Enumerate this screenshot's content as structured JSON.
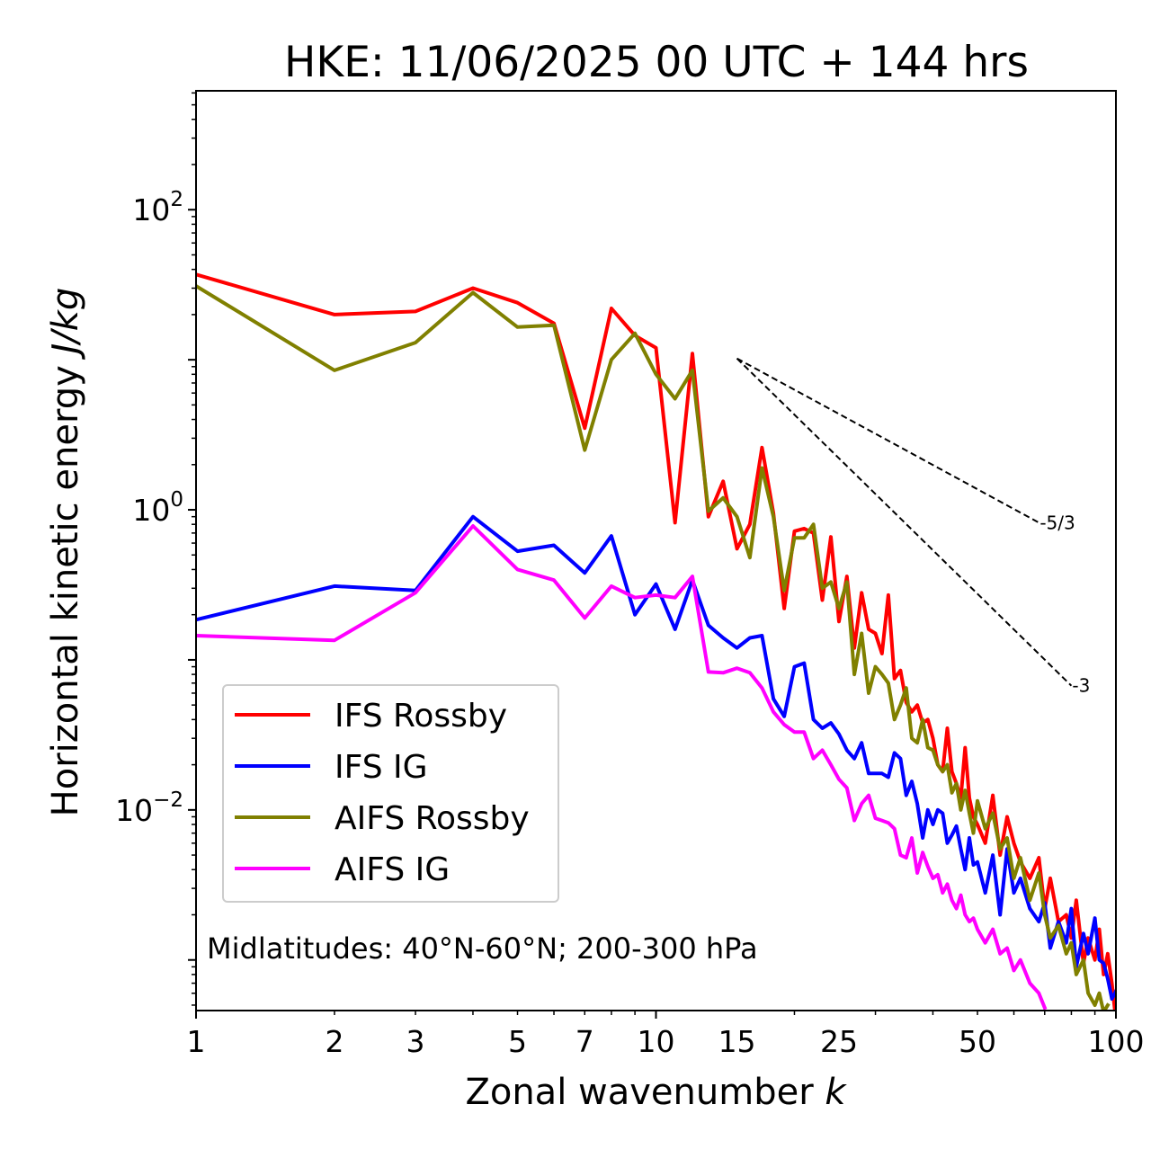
{
  "chart_data": {
    "type": "line",
    "title": "HKE: 11/06/2025 00 UTC + 144 hrs",
    "xlabel": "Zonal wavenumber",
    "xlabel_var": "k",
    "ylabel": "Horizontal kinetic energy",
    "ylabel_unit": "J/kg",
    "xscale": "log",
    "yscale": "log",
    "xlim": [
      1,
      100
    ],
    "ylim": [
      0.00046,
      620
    ],
    "xticks": [
      "1",
      "2",
      "3",
      "5",
      "7",
      "10",
      "15",
      "25",
      "50",
      "100"
    ],
    "yticks": [
      {
        "base": "10",
        "exp": "2",
        "value": 100
      },
      {
        "base": "10",
        "exp": "0",
        "value": 1
      },
      {
        "base": "10",
        "exp": "−2",
        "value": 0.01
      }
    ],
    "annotation": "Midlatitudes: 40°N-60°N; 200-300 hPa",
    "legend_position": "lower-left",
    "reference_slopes": [
      {
        "label": "-5/3",
        "slope": -1.6667,
        "x_start": 15,
        "y_start": 10.2,
        "x_end": 68
      },
      {
        "label": "-3",
        "slope": -3,
        "x_start": 15,
        "y_start": 10.2,
        "x_end": 80
      }
    ],
    "series": [
      {
        "name": "IFS Rossby",
        "color": "#ff0000",
        "points": [
          [
            1,
            37
          ],
          [
            2,
            20
          ],
          [
            3,
            21
          ],
          [
            4,
            30
          ],
          [
            5,
            24
          ],
          [
            6,
            17.5
          ],
          [
            7,
            3.5
          ],
          [
            8,
            22
          ],
          [
            9,
            14.5
          ],
          [
            10,
            12
          ],
          [
            11,
            0.82
          ],
          [
            12,
            11
          ],
          [
            13,
            0.9
          ],
          [
            14,
            1.55
          ],
          [
            15,
            0.55
          ],
          [
            16,
            0.8
          ],
          [
            17,
            2.6
          ],
          [
            18,
            0.95
          ],
          [
            19,
            0.22
          ],
          [
            20,
            0.72
          ],
          [
            21,
            0.75
          ],
          [
            22,
            0.7
          ],
          [
            23,
            0.25
          ],
          [
            24,
            0.66
          ],
          [
            25,
            0.18
          ],
          [
            26,
            0.36
          ],
          [
            27,
            0.12
          ],
          [
            28,
            0.28
          ],
          [
            29,
            0.16
          ],
          [
            30,
            0.15
          ],
          [
            31,
            0.11
          ],
          [
            32,
            0.27
          ],
          [
            33,
            0.075
          ],
          [
            34,
            0.085
          ],
          [
            35,
            0.052
          ],
          [
            36,
            0.045
          ],
          [
            37,
            0.05
          ],
          [
            38,
            0.038
          ],
          [
            39,
            0.04
          ],
          [
            40,
            0.03
          ],
          [
            41,
            0.02
          ],
          [
            42,
            0.018
          ],
          [
            43,
            0.035
          ],
          [
            44,
            0.018
          ],
          [
            45,
            0.015
          ],
          [
            46,
            0.012
          ],
          [
            47,
            0.026
          ],
          [
            48,
            0.012
          ],
          [
            49,
            0.009
          ],
          [
            50,
            0.008
          ],
          [
            52,
            0.006
          ],
          [
            54,
            0.0125
          ],
          [
            56,
            0.005
          ],
          [
            58,
            0.009
          ],
          [
            60,
            0.006
          ],
          [
            62,
            0.0045
          ],
          [
            65,
            0.0035
          ],
          [
            68,
            0.0048
          ],
          [
            70,
            0.0022
          ],
          [
            72,
            0.0035
          ],
          [
            75,
            0.0018
          ],
          [
            78,
            0.002
          ],
          [
            80,
            0.0014
          ],
          [
            82,
            0.0025
          ],
          [
            85,
            0.00095
          ],
          [
            87,
            0.0014
          ],
          [
            90,
            0.001
          ],
          [
            92,
            0.0016
          ],
          [
            94,
            0.0008
          ],
          [
            96,
            0.0011
          ],
          [
            98,
            0.0007
          ],
          [
            100,
            0.0004
          ]
        ]
      },
      {
        "name": "IFS IG",
        "color": "#0000ff",
        "points": [
          [
            1,
            0.185
          ],
          [
            2,
            0.31
          ],
          [
            3,
            0.29
          ],
          [
            4,
            0.9
          ],
          [
            5,
            0.53
          ],
          [
            6,
            0.58
          ],
          [
            7,
            0.38
          ],
          [
            8,
            0.67
          ],
          [
            9,
            0.2
          ],
          [
            10,
            0.32
          ],
          [
            11,
            0.16
          ],
          [
            12,
            0.34
          ],
          [
            13,
            0.17
          ],
          [
            14,
            0.14
          ],
          [
            15,
            0.12
          ],
          [
            16,
            0.14
          ],
          [
            17,
            0.145
          ],
          [
            18,
            0.055
          ],
          [
            19,
            0.042
          ],
          [
            20,
            0.09
          ],
          [
            21,
            0.095
          ],
          [
            22,
            0.04
          ],
          [
            23,
            0.035
          ],
          [
            24,
            0.038
          ],
          [
            25,
            0.032
          ],
          [
            26,
            0.025
          ],
          [
            27,
            0.022
          ],
          [
            28,
            0.028
          ],
          [
            29,
            0.0175
          ],
          [
            30,
            0.0175
          ],
          [
            31,
            0.0175
          ],
          [
            32,
            0.0165
          ],
          [
            33,
            0.024
          ],
          [
            34,
            0.022
          ],
          [
            35,
            0.0125
          ],
          [
            36,
            0.0155
          ],
          [
            37,
            0.011
          ],
          [
            38,
            0.0065
          ],
          [
            39,
            0.01
          ],
          [
            40,
            0.008
          ],
          [
            41,
            0.01
          ],
          [
            42,
            0.0095
          ],
          [
            43,
            0.006
          ],
          [
            44,
            0.0068
          ],
          [
            45,
            0.0078
          ],
          [
            46,
            0.0055
          ],
          [
            47,
            0.004
          ],
          [
            48,
            0.0065
          ],
          [
            49,
            0.0043
          ],
          [
            50,
            0.0045
          ],
          [
            52,
            0.0028
          ],
          [
            54,
            0.005
          ],
          [
            56,
            0.002
          ],
          [
            58,
            0.0055
          ],
          [
            60,
            0.0028
          ],
          [
            62,
            0.0035
          ],
          [
            65,
            0.0022
          ],
          [
            68,
            0.0018
          ],
          [
            70,
            0.0024
          ],
          [
            72,
            0.0012
          ],
          [
            75,
            0.0018
          ],
          [
            78,
            0.0013
          ],
          [
            80,
            0.0022
          ],
          [
            82,
            0.0009
          ],
          [
            85,
            0.0015
          ],
          [
            87,
            0.0011
          ],
          [
            90,
            0.0019
          ],
          [
            92,
            0.001
          ],
          [
            94,
            0.00095
          ],
          [
            96,
            0.00075
          ],
          [
            98,
            0.00055
          ],
          [
            100,
            0.00062
          ]
        ]
      },
      {
        "name": "AIFS Rossby",
        "color": "#808000",
        "points": [
          [
            1,
            31
          ],
          [
            2,
            8.5
          ],
          [
            3,
            13
          ],
          [
            4,
            28
          ],
          [
            5,
            16.5
          ],
          [
            6,
            17
          ],
          [
            7,
            2.5
          ],
          [
            8,
            10
          ],
          [
            9,
            15
          ],
          [
            10,
            8
          ],
          [
            11,
            5.5
          ],
          [
            12,
            8.5
          ],
          [
            13,
            0.98
          ],
          [
            14,
            1.2
          ],
          [
            15,
            0.9
          ],
          [
            16,
            0.48
          ],
          [
            17,
            1.9
          ],
          [
            18,
            0.9
          ],
          [
            19,
            0.29
          ],
          [
            20,
            0.65
          ],
          [
            21,
            0.65
          ],
          [
            22,
            0.8
          ],
          [
            23,
            0.3
          ],
          [
            24,
            0.33
          ],
          [
            25,
            0.22
          ],
          [
            26,
            0.33
          ],
          [
            27,
            0.08
          ],
          [
            28,
            0.15
          ],
          [
            29,
            0.06
          ],
          [
            30,
            0.09
          ],
          [
            31,
            0.08
          ],
          [
            32,
            0.07
          ],
          [
            33,
            0.04
          ],
          [
            34,
            0.05
          ],
          [
            35,
            0.065
          ],
          [
            36,
            0.03
          ],
          [
            37,
            0.028
          ],
          [
            38,
            0.04
          ],
          [
            39,
            0.026
          ],
          [
            40,
            0.025
          ],
          [
            41,
            0.02
          ],
          [
            42,
            0.018
          ],
          [
            43,
            0.02
          ],
          [
            44,
            0.013
          ],
          [
            45,
            0.015
          ],
          [
            46,
            0.01
          ],
          [
            47,
            0.0135
          ],
          [
            48,
            0.0095
          ],
          [
            49,
            0.007
          ],
          [
            50,
            0.0115
          ],
          [
            52,
            0.0075
          ],
          [
            54,
            0.0095
          ],
          [
            56,
            0.0055
          ],
          [
            58,
            0.0065
          ],
          [
            60,
            0.0035
          ],
          [
            62,
            0.0048
          ],
          [
            65,
            0.0025
          ],
          [
            68,
            0.0038
          ],
          [
            70,
            0.002
          ],
          [
            72,
            0.0014
          ],
          [
            75,
            0.0017
          ],
          [
            78,
            0.0011
          ],
          [
            80,
            0.0013
          ],
          [
            82,
            0.0008
          ],
          [
            85,
            0.001
          ],
          [
            87,
            0.0006
          ],
          [
            90,
            0.0005
          ],
          [
            92,
            0.0006
          ],
          [
            94,
            0.00045
          ],
          [
            96,
            0.0005
          ]
        ]
      },
      {
        "name": "AIFS IG",
        "color": "#ff00ff",
        "points": [
          [
            1,
            0.145
          ],
          [
            2,
            0.135
          ],
          [
            3,
            0.28
          ],
          [
            4,
            0.78
          ],
          [
            5,
            0.4
          ],
          [
            6,
            0.34
          ],
          [
            7,
            0.19
          ],
          [
            8,
            0.31
          ],
          [
            9,
            0.26
          ],
          [
            10,
            0.27
          ],
          [
            11,
            0.26
          ],
          [
            12,
            0.36
          ],
          [
            13,
            0.083
          ],
          [
            14,
            0.082
          ],
          [
            15,
            0.088
          ],
          [
            16,
            0.082
          ],
          [
            17,
            0.065
          ],
          [
            18,
            0.045
          ],
          [
            19,
            0.037
          ],
          [
            20,
            0.033
          ],
          [
            21,
            0.033
          ],
          [
            22,
            0.022
          ],
          [
            23,
            0.025
          ],
          [
            24,
            0.02
          ],
          [
            25,
            0.016
          ],
          [
            26,
            0.014
          ],
          [
            27,
            0.0085
          ],
          [
            28,
            0.011
          ],
          [
            29,
            0.0125
          ],
          [
            30,
            0.0088
          ],
          [
            31,
            0.0085
          ],
          [
            32,
            0.0082
          ],
          [
            33,
            0.0075
          ],
          [
            34,
            0.005
          ],
          [
            35,
            0.0048
          ],
          [
            36,
            0.0065
          ],
          [
            37,
            0.0038
          ],
          [
            38,
            0.0052
          ],
          [
            39,
            0.0042
          ],
          [
            40,
            0.0035
          ],
          [
            41,
            0.0037
          ],
          [
            42,
            0.0028
          ],
          [
            43,
            0.0032
          ],
          [
            44,
            0.0025
          ],
          [
            45,
            0.0022
          ],
          [
            46,
            0.0027
          ],
          [
            47,
            0.002
          ],
          [
            48,
            0.0018
          ],
          [
            49,
            0.0019
          ],
          [
            50,
            0.0016
          ],
          [
            52,
            0.0013
          ],
          [
            54,
            0.0016
          ],
          [
            56,
            0.0011
          ],
          [
            58,
            0.0012
          ],
          [
            60,
            0.00085
          ],
          [
            62,
            0.001
          ],
          [
            65,
            0.0007
          ],
          [
            68,
            0.0006
          ],
          [
            70,
            0.00048
          ]
        ]
      }
    ]
  }
}
